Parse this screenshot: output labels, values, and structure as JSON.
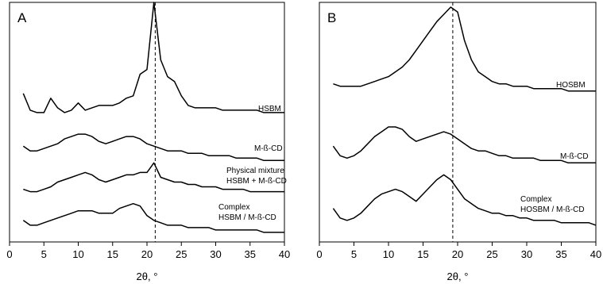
{
  "chart_data": [
    {
      "type": "line",
      "panel_label": "A",
      "xlabel": "2θ, °",
      "xlim": [
        0,
        40
      ],
      "xticks": [
        0,
        5,
        10,
        15,
        20,
        25,
        30,
        35,
        40
      ],
      "ylim": [
        0,
        100
      ],
      "reference_line": 21.2,
      "color": "#000000",
      "x": [
        2,
        3,
        4,
        5,
        6,
        7,
        8,
        9,
        10,
        11,
        12,
        13,
        14,
        15,
        16,
        17,
        18,
        19,
        20,
        21,
        22,
        23,
        24,
        25,
        26,
        27,
        28,
        29,
        30,
        31,
        32,
        33,
        34,
        35,
        36,
        37,
        38,
        39,
        40
      ],
      "series": [
        {
          "name": "HSBM",
          "label_lines": [
            "HSBM"
          ],
          "values": [
            62,
            55,
            54,
            54,
            60,
            56,
            54,
            55,
            58,
            55,
            56,
            57,
            57,
            57,
            58,
            60,
            61,
            70,
            72,
            100,
            76,
            69,
            67,
            61,
            57,
            56,
            56,
            56,
            56,
            55,
            55,
            55,
            55,
            55,
            55,
            54,
            54,
            54,
            54
          ]
        },
        {
          "name": "M-ß-CD",
          "label_lines": [
            "M-ß-CD"
          ],
          "values": [
            40,
            38,
            38,
            39,
            40,
            41,
            43,
            44,
            45,
            45,
            44,
            42,
            41,
            42,
            43,
            44,
            44,
            43,
            41,
            40,
            39,
            38,
            38,
            38,
            37,
            37,
            37,
            36,
            36,
            36,
            36,
            35,
            35,
            35,
            35,
            34,
            34,
            34,
            34
          ]
        },
        {
          "name": "Physical mixture HSBM + M-ß-CD",
          "label_lines": [
            "Physical mixture",
            "HSBM + M-ß-CD"
          ],
          "values": [
            22,
            21,
            21,
            22,
            23,
            25,
            26,
            27,
            28,
            29,
            28,
            26,
            25,
            26,
            27,
            28,
            28,
            29,
            29,
            33,
            27,
            26,
            25,
            25,
            24,
            24,
            23,
            23,
            23,
            22,
            22,
            22,
            22,
            21,
            21,
            21,
            21,
            21,
            21
          ]
        },
        {
          "name": "Complex HSBM / M-ß-CD",
          "label_lines": [
            "Complex",
            "HSBM / M-ß-CD"
          ],
          "values": [
            9,
            7,
            7,
            8,
            9,
            10,
            11,
            12,
            13,
            13,
            13,
            12,
            12,
            12,
            14,
            15,
            16,
            15,
            11,
            9,
            8,
            7,
            7,
            7,
            6,
            6,
            6,
            6,
            5,
            5,
            5,
            5,
            5,
            5,
            5,
            4,
            4,
            4,
            4
          ]
        }
      ]
    },
    {
      "type": "line",
      "panel_label": "B",
      "xlabel": "2θ, °",
      "xlim": [
        0,
        40
      ],
      "xticks": [
        0,
        5,
        10,
        15,
        20,
        25,
        30,
        35,
        40
      ],
      "ylim": [
        0,
        100
      ],
      "reference_line": 19.3,
      "color": "#000000",
      "x": [
        2,
        3,
        4,
        5,
        6,
        7,
        8,
        9,
        10,
        11,
        12,
        13,
        14,
        15,
        16,
        17,
        18,
        19,
        20,
        21,
        22,
        23,
        24,
        25,
        26,
        27,
        28,
        29,
        30,
        31,
        32,
        33,
        34,
        35,
        36,
        37,
        38,
        39,
        40
      ],
      "series": [
        {
          "name": "HOSBM",
          "label_lines": [
            "HOSBM"
          ],
          "values": [
            66,
            65,
            65,
            65,
            65,
            66,
            67,
            68,
            69,
            71,
            73,
            76,
            80,
            84,
            88,
            92,
            95,
            98,
            96,
            84,
            76,
            71,
            69,
            67,
            66,
            66,
            65,
            65,
            65,
            64,
            64,
            64,
            64,
            64,
            63,
            63,
            63,
            63,
            63
          ]
        },
        {
          "name": "M-ß-CD",
          "label_lines": [
            "M-ß-CD"
          ],
          "values": [
            40,
            36,
            35,
            36,
            38,
            41,
            44,
            46,
            48,
            48,
            47,
            44,
            42,
            43,
            44,
            45,
            46,
            45,
            43,
            41,
            39,
            38,
            38,
            37,
            36,
            36,
            35,
            35,
            35,
            35,
            34,
            34,
            34,
            34,
            33,
            33,
            33,
            33,
            33
          ]
        },
        {
          "name": "Complex HOSBM / M-ß-CD",
          "label_lines": [
            "Complex",
            "HOSBM / M-ß-CD"
          ],
          "values": [
            14,
            10,
            9,
            10,
            12,
            15,
            18,
            20,
            21,
            22,
            21,
            19,
            17,
            20,
            23,
            26,
            28,
            26,
            22,
            18,
            16,
            14,
            13,
            12,
            12,
            11,
            11,
            10,
            10,
            9,
            9,
            9,
            9,
            8,
            8,
            8,
            8,
            8,
            7
          ]
        }
      ]
    }
  ]
}
